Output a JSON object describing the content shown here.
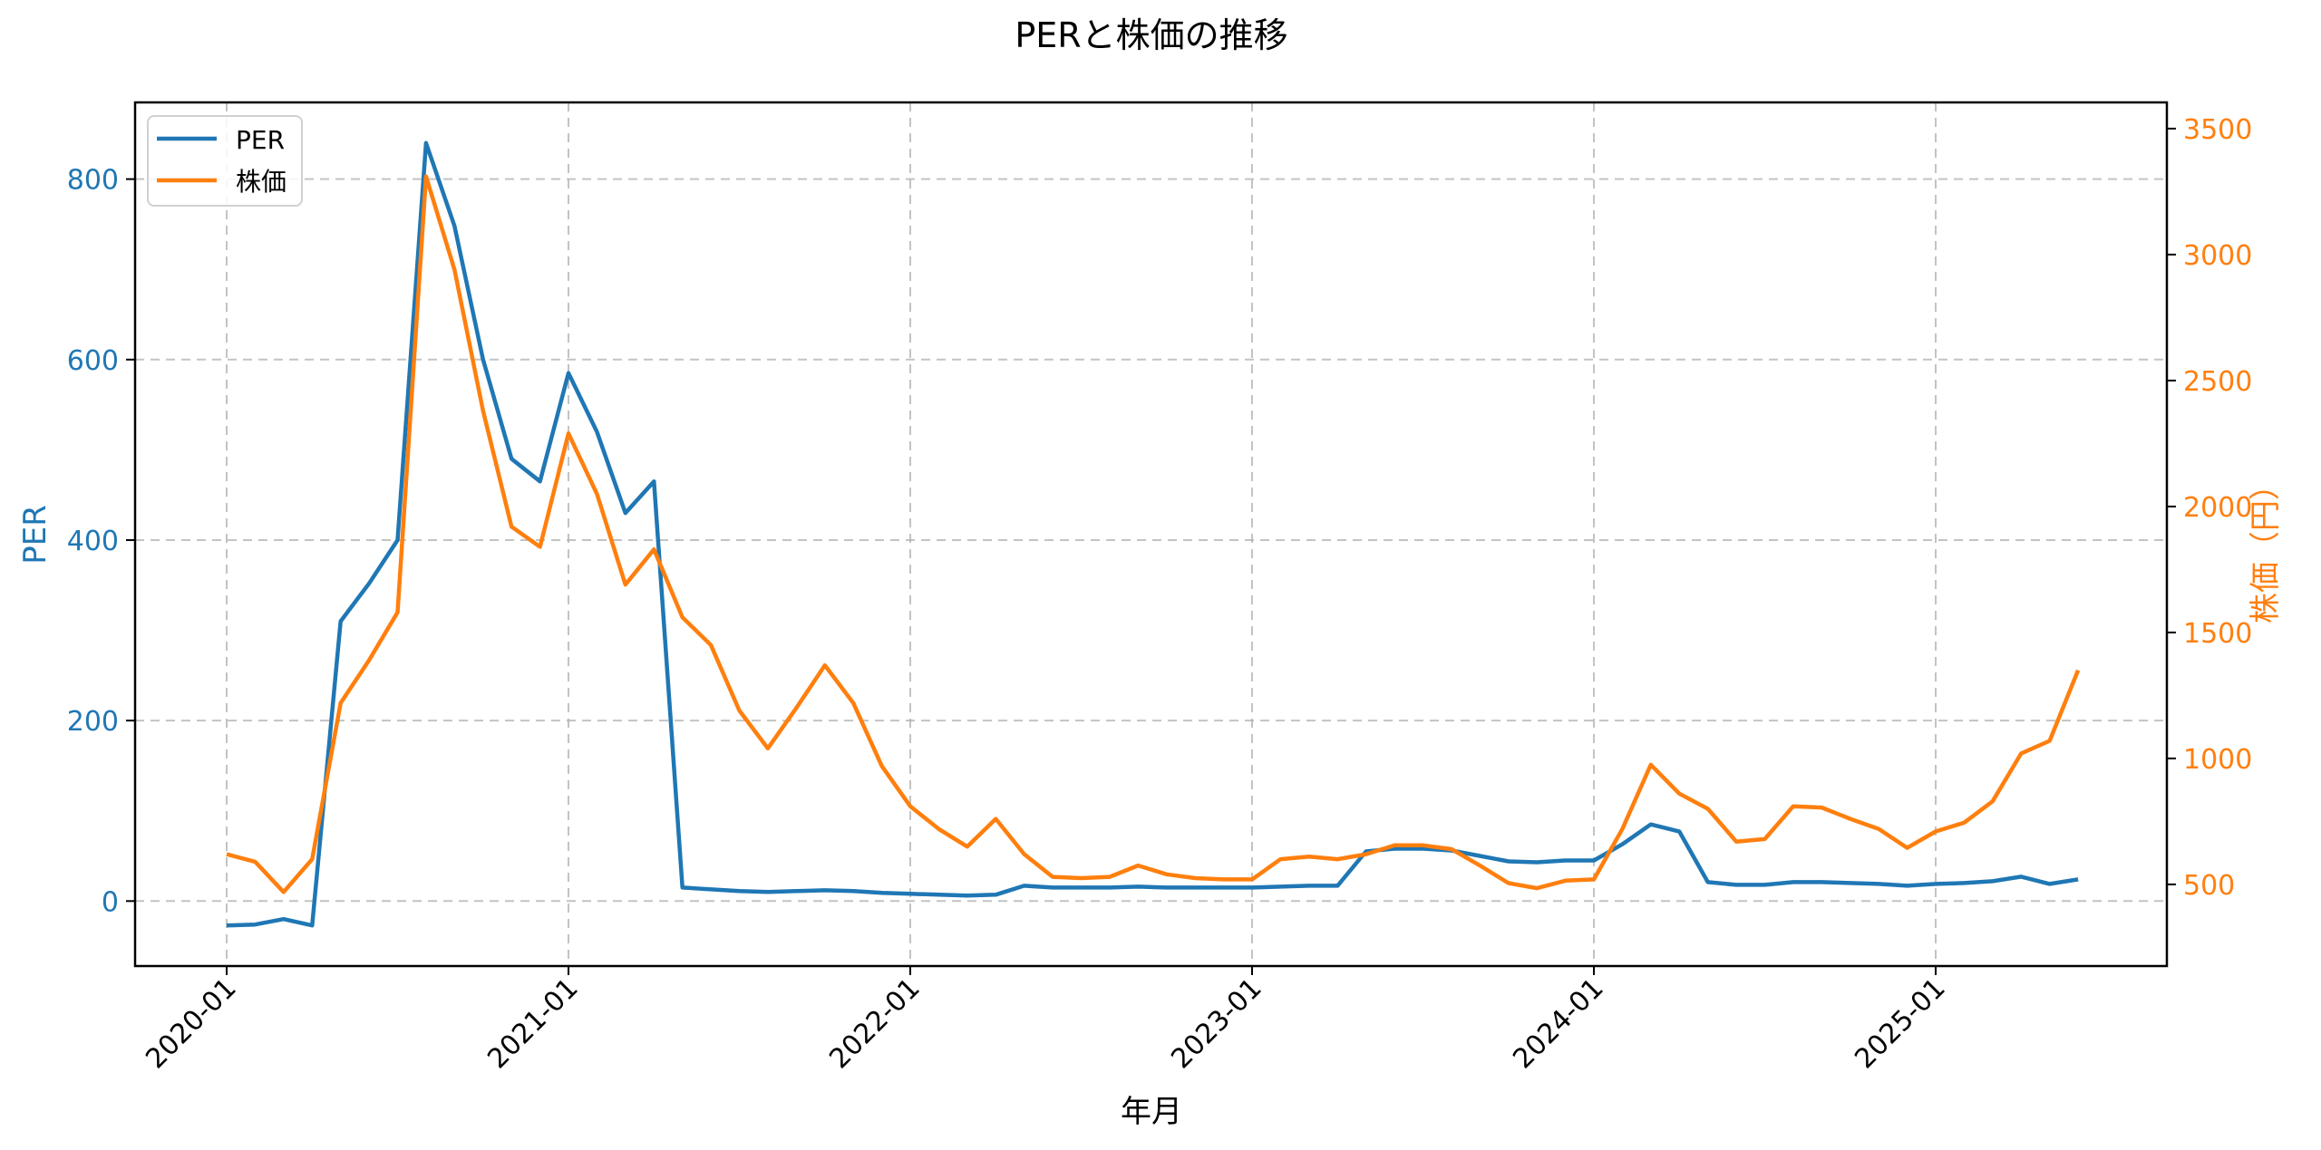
{
  "chart_data": {
    "type": "line",
    "title": "PERと株価の推移",
    "xlabel": "年月",
    "ylabel": "PER",
    "ylabel_right": "株価（円）",
    "x_ticks": [
      "2020-01",
      "2021-01",
      "2022-01",
      "2023-01",
      "2024-01",
      "2025-01"
    ],
    "y_ticks_left": [
      0,
      200,
      400,
      600,
      800
    ],
    "y_ticks_right": [
      500,
      1000,
      1500,
      2000,
      2500,
      3000,
      3500
    ],
    "ylim_left": [
      -72,
      885
    ],
    "ylim_right": [
      176,
      3604
    ],
    "grid": true,
    "legend_position": "upper left",
    "x": [
      "2020-01",
      "2020-02",
      "2020-03",
      "2020-04",
      "2020-05",
      "2020-06",
      "2020-07",
      "2020-08",
      "2020-09",
      "2020-10",
      "2020-11",
      "2020-12",
      "2021-01",
      "2021-02",
      "2021-03",
      "2021-04",
      "2021-05",
      "2021-06",
      "2021-07",
      "2021-08",
      "2021-09",
      "2021-10",
      "2021-11",
      "2021-12",
      "2022-01",
      "2022-02",
      "2022-03",
      "2022-04",
      "2022-05",
      "2022-06",
      "2022-07",
      "2022-08",
      "2022-09",
      "2022-10",
      "2022-11",
      "2022-12",
      "2023-01",
      "2023-02",
      "2023-03",
      "2023-04",
      "2023-05",
      "2023-06",
      "2023-07",
      "2023-08",
      "2023-09",
      "2023-10",
      "2023-11",
      "2023-12",
      "2024-01",
      "2024-02",
      "2024-03",
      "2024-04",
      "2024-05",
      "2024-06",
      "2024-07",
      "2024-08",
      "2024-09",
      "2024-10",
      "2024-11",
      "2024-12",
      "2025-01",
      "2025-02",
      "2025-03",
      "2025-04",
      "2025-05",
      "2025-06"
    ],
    "series": [
      {
        "name": "PER",
        "axis": "left",
        "color": "#1f77b4",
        "values": [
          -27,
          -26,
          -20,
          -27,
          310,
          352,
          400,
          840,
          748,
          600,
          490,
          465,
          585,
          520,
          430,
          465,
          15,
          13,
          11,
          10,
          11,
          12,
          11,
          9,
          8,
          7,
          6,
          7,
          17,
          15,
          15,
          15,
          16,
          15,
          15,
          15,
          15,
          16,
          17,
          17,
          55,
          58,
          58,
          56,
          50,
          44,
          43,
          45,
          45,
          63,
          85,
          77,
          21,
          18,
          18,
          21,
          21,
          20,
          19,
          17,
          19,
          20,
          22,
          27,
          19,
          24
        ]
      },
      {
        "name": "株価",
        "axis": "right",
        "color": "#ff7f0e",
        "values": [
          620,
          590,
          470,
          600,
          1220,
          1390,
          1580,
          3310,
          2940,
          2380,
          1920,
          1840,
          2290,
          2050,
          1690,
          1830,
          1560,
          1450,
          1190,
          1040,
          1200,
          1370,
          1220,
          970,
          810,
          720,
          650,
          760,
          620,
          530,
          525,
          530,
          575,
          540,
          525,
          520,
          520,
          600,
          610,
          600,
          620,
          655,
          655,
          640,
          575,
          505,
          485,
          515,
          520,
          720,
          975,
          860,
          800,
          670,
          680,
          810,
          805,
          760,
          720,
          645,
          710,
          745,
          830,
          1020,
          1070,
          1350
        ]
      }
    ]
  },
  "legend": {
    "items": [
      {
        "label": "PER",
        "color": "#1f77b4"
      },
      {
        "label": "株価",
        "color": "#ff7f0e"
      }
    ]
  }
}
